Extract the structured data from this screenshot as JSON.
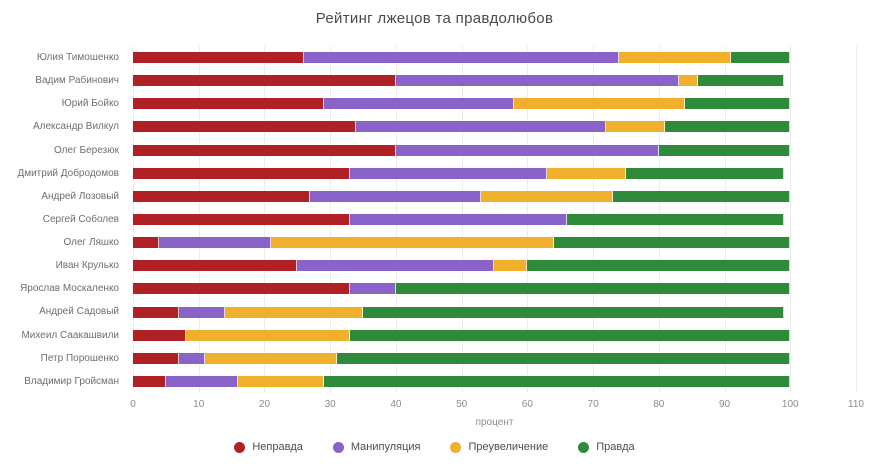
{
  "title": "Рейтинг лжецов та правдолюбов",
  "chart_data": {
    "type": "bar",
    "orientation": "horizontal",
    "stacked": true,
    "title": "Рейтинг лжецов та правдолюбов",
    "xlabel": "процент",
    "ylabel": "",
    "xlim": [
      0,
      110
    ],
    "x_ticks": [
      0,
      10,
      20,
      30,
      40,
      50,
      60,
      70,
      80,
      90,
      100,
      110
    ],
    "grid": true,
    "legend_position": "bottom",
    "categories": [
      "Юлия Тимошенко",
      "Вадим Рабинович",
      "Юрий Бойко",
      "Александр Вилкул",
      "Олег Березюк",
      "Дмитрий Добродомов",
      "Андрей Лозовый",
      "Сергей Соболев",
      "Олег Ляшко",
      "Иван Крулько",
      "Ярослав Москаленко",
      "Андрей Садовый",
      "Михеил Саакашвили",
      "Петр Порошенко",
      "Владимир Гройсман"
    ],
    "series": [
      {
        "name": "Неправда",
        "color": "#b02126",
        "values": [
          26,
          40,
          29,
          34,
          40,
          33,
          27,
          33,
          4,
          25,
          33,
          7,
          8,
          7,
          5
        ]
      },
      {
        "name": "Манипуляция",
        "color": "#8a63c9",
        "values": [
          48,
          43,
          29,
          38,
          40,
          30,
          26,
          33,
          17,
          30,
          7,
          7,
          0,
          4,
          11
        ]
      },
      {
        "name": "Преувеличение",
        "color": "#f0b02c",
        "values": [
          17,
          3,
          26,
          9,
          0,
          12,
          20,
          0,
          43,
          5,
          0,
          21,
          25,
          20,
          13
        ]
      },
      {
        "name": "Правда",
        "color": "#2f8b3b",
        "values": [
          9,
          13,
          16,
          19,
          20,
          24,
          27,
          33,
          36,
          40,
          60,
          64,
          67,
          69,
          71
        ]
      }
    ]
  },
  "colors": {
    "title": "#4a4a4a",
    "labels": "#6e6e6e",
    "ticks": "#8c8c8c",
    "gridline": "#ededed",
    "background": "#ffffff"
  }
}
